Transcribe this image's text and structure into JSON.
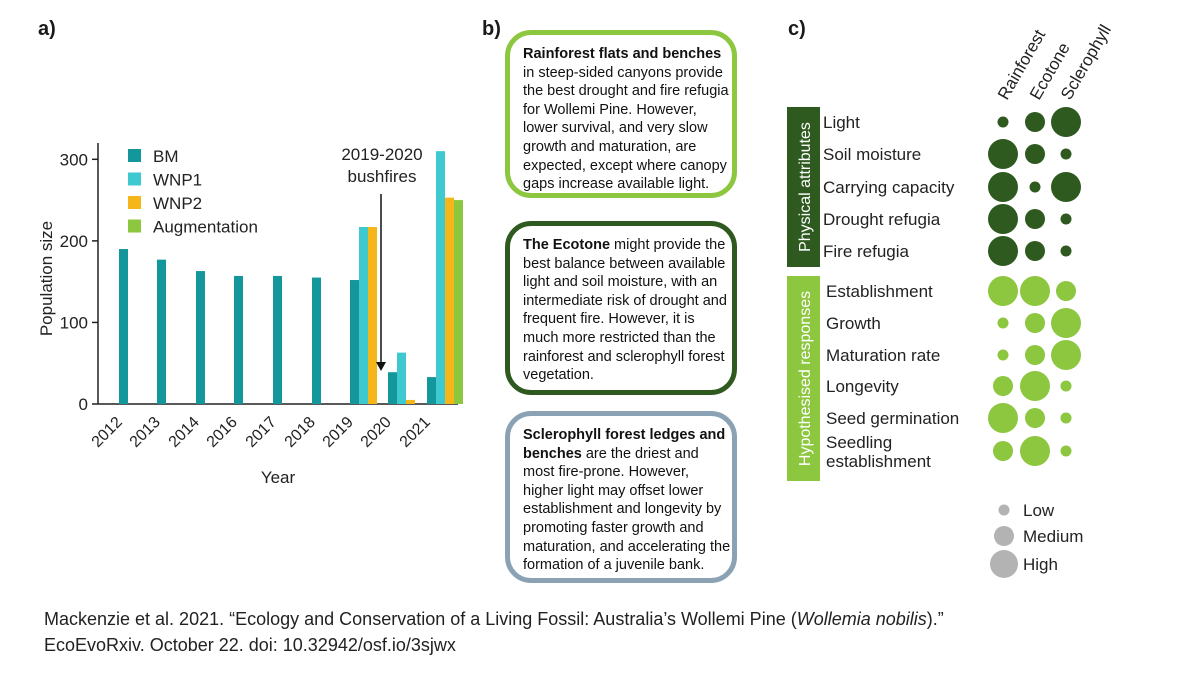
{
  "labels": {
    "a": "a)",
    "b": "b)",
    "c": "c)"
  },
  "chart_data": [
    {
      "type": "bar",
      "panel": "a",
      "ylabel": "Population size",
      "xlabel": "Year",
      "ylim": [
        0,
        320
      ],
      "yticks": [
        0,
        100,
        200,
        300
      ],
      "categories": [
        "2012",
        "2013",
        "2014",
        "2016",
        "2017",
        "2018",
        "2019",
        "2020",
        "2021"
      ],
      "series": [
        {
          "name": "BM",
          "color": "#13979a",
          "values": [
            190,
            177,
            163,
            157,
            157,
            155,
            152,
            39,
            33
          ]
        },
        {
          "name": "WNP1",
          "color": "#3ec8cf",
          "values": [
            null,
            null,
            null,
            null,
            null,
            null,
            217,
            63,
            310
          ]
        },
        {
          "name": "WNP2",
          "color": "#f5b619",
          "values": [
            null,
            null,
            null,
            null,
            null,
            null,
            217,
            5,
            253
          ]
        },
        {
          "name": "Augmentation",
          "color": "#8dc63f",
          "values": [
            null,
            null,
            null,
            null,
            null,
            null,
            null,
            null,
            250
          ]
        }
      ],
      "annotation": {
        "line1": "2019-2020",
        "line2": "bushfires"
      },
      "legend": "top-left"
    },
    {
      "type": "bubble",
      "panel": "c",
      "columns": [
        "Rainforest",
        "Ecotone",
        "Sclerophyll"
      ],
      "groups": [
        {
          "name": "Physical attributes",
          "color": "#2e5a1f",
          "rows": [
            {
              "label": "Light",
              "values": [
                1,
                2,
                3
              ]
            },
            {
              "label": "Soil moisture",
              "values": [
                3,
                2,
                1
              ]
            },
            {
              "label": "Carrying capacity",
              "values": [
                3,
                1,
                3
              ]
            },
            {
              "label": "Drought refugia",
              "values": [
                3,
                2,
                1
              ]
            },
            {
              "label": "Fire refugia",
              "values": [
                3,
                2,
                1
              ]
            }
          ]
        },
        {
          "name": "Hypothesised responses",
          "color": "#8dc63f",
          "rows": [
            {
              "label": "Establishment",
              "values": [
                3,
                3,
                2
              ]
            },
            {
              "label": "Growth",
              "values": [
                1,
                2,
                3
              ]
            },
            {
              "label": "Maturation rate",
              "values": [
                1,
                2,
                3
              ]
            },
            {
              "label": "Longevity",
              "values": [
                2,
                3,
                1
              ]
            },
            {
              "label": "Seed germination",
              "values": [
                3,
                2,
                1
              ]
            },
            {
              "label": "Seedling\nestablishment",
              "line1": "Seedling",
              "line2": "establishment",
              "values": [
                2,
                3,
                1
              ]
            }
          ]
        }
      ],
      "size_legend": {
        "low": "Low",
        "medium": "Medium",
        "high": "High",
        "color": "#b3b3b3"
      }
    }
  ],
  "boxes": [
    {
      "color": "#8dc63f",
      "bold": "Rainforest flats and benches",
      "text": " in steep-sided canyons provide the best drought and fire refugia for Wollemi Pine. However, lower survival, and very slow growth and maturation, are expected, except where canopy gaps increase available light."
    },
    {
      "color": "#2e5a1f",
      "bold": "The Ecotone",
      "text": " might provide the best balance between available light and soil moisture, with an intermediate risk of drought and frequent fire. However, it is much more restricted than the rainforest and sclerophyll forest vegetation."
    },
    {
      "color": "#8aa2b3",
      "bold": "Sclerophyll forest ledges and benches",
      "text": " are the driest and most fire-prone. However, higher light may offset lower establishment and longevity by promoting faster growth and maturation, and accelerating the formation of a juvenile bank."
    }
  ],
  "citation": {
    "line1_pre": "Mackenzie et al. 2021. “Ecology and Conservation of a Living Fossil: Australia’s Wollemi Pine (",
    "line1_italic": "Wollemia nobilis",
    "line1_post": ").”",
    "line2": "EcoEvoRxiv. October 22. doi: 10.32942/osf.io/3sjwx"
  }
}
